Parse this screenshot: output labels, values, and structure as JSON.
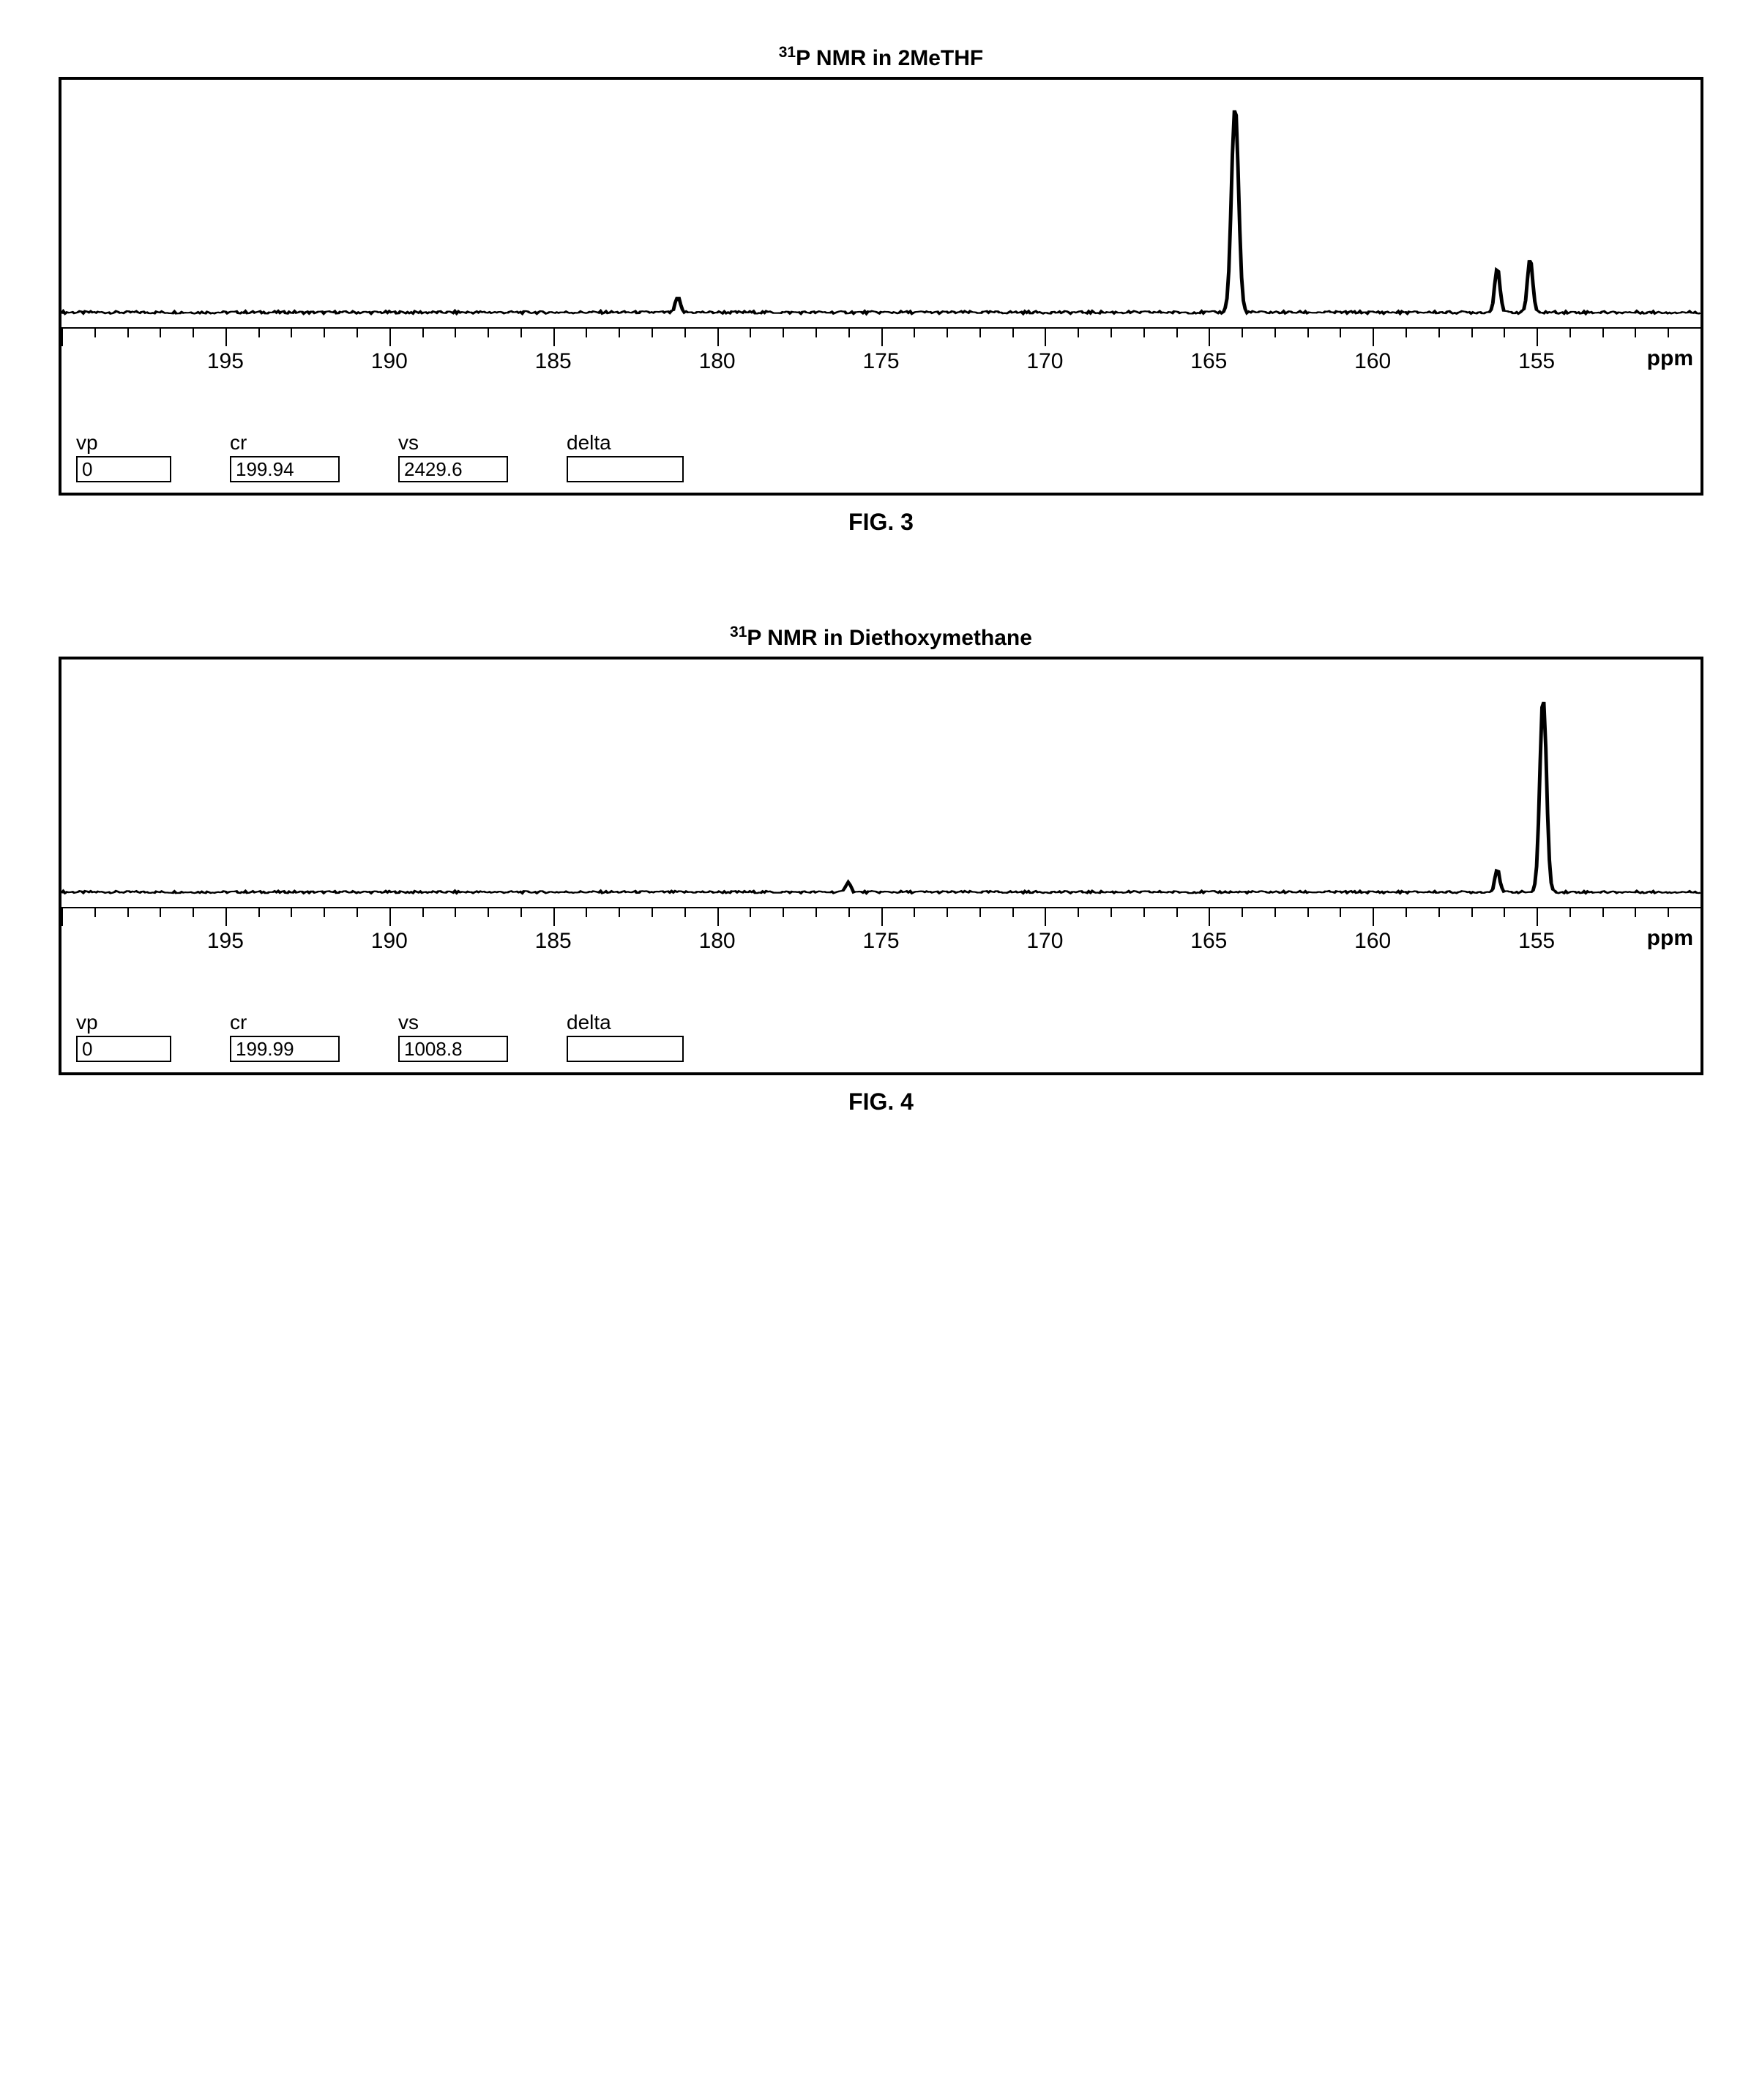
{
  "figures": [
    {
      "title_pre": "31",
      "title_post": "P NMR in 2MeTHF",
      "caption": "FIG. 3",
      "axis_unit": "ppm",
      "x_min": 150,
      "x_max": 200,
      "x_ticks_major": [
        195,
        190,
        185,
        180,
        175,
        170,
        165,
        160,
        155
      ],
      "line_color": "#000000",
      "line_width": 2.2,
      "background_color": "#ffffff",
      "border_color": "#000000",
      "params": [
        {
          "label": "vp",
          "value": "0",
          "width": 130
        },
        {
          "label": "cr",
          "value": "199.94",
          "width": 150
        },
        {
          "label": "vs",
          "value": "2429.6",
          "width": 150
        },
        {
          "label": "delta",
          "value": "",
          "width": 160
        }
      ],
      "peaks": [
        {
          "ppm": 164.2,
          "height": 0.95,
          "width": 0.3
        },
        {
          "ppm": 156.2,
          "height": 0.21,
          "width": 0.22
        },
        {
          "ppm": 155.2,
          "height": 0.25,
          "width": 0.22
        },
        {
          "ppm": 181.2,
          "height": 0.07,
          "width": 0.2
        }
      ],
      "baseline_noise": 0.012
    },
    {
      "title_pre": "31",
      "title_post": "P NMR in Diethoxymethane",
      "caption": "FIG. 4",
      "axis_unit": "ppm",
      "x_min": 150,
      "x_max": 200,
      "x_ticks_major": [
        195,
        190,
        185,
        180,
        175,
        170,
        165,
        160,
        155
      ],
      "line_color": "#000000",
      "line_width": 2.2,
      "background_color": "#ffffff",
      "border_color": "#000000",
      "params": [
        {
          "label": "vp",
          "value": "0",
          "width": 130
        },
        {
          "label": "cr",
          "value": "199.99",
          "width": 150
        },
        {
          "label": "vs",
          "value": "1008.8",
          "width": 150
        },
        {
          "label": "delta",
          "value": "",
          "width": 160
        }
      ],
      "peaks": [
        {
          "ppm": 154.8,
          "height": 0.9,
          "width": 0.28
        },
        {
          "ppm": 156.2,
          "height": 0.11,
          "width": 0.2
        },
        {
          "ppm": 176.0,
          "height": 0.05,
          "width": 0.2
        }
      ],
      "baseline_noise": 0.01
    }
  ]
}
